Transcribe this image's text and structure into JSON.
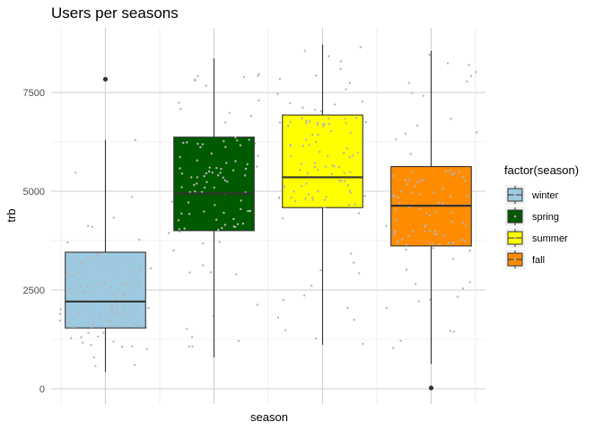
{
  "chart_data": {
    "type": "box",
    "title": "Users per seasons",
    "xlabel": "season",
    "ylabel": "trb",
    "ylim": [
      0,
      8700
    ],
    "y_ticks": [
      0,
      2500,
      5000,
      7500
    ],
    "y_tick_labels": [
      "0",
      "2500",
      "5000",
      "7500"
    ],
    "x_tick_labels": [],
    "grid": true,
    "legend": {
      "title": "factor(season)",
      "position": "right",
      "entries": [
        "winter",
        "spring",
        "summer",
        "fall"
      ]
    },
    "series": [
      {
        "name": "winter",
        "color": "#9ecae1",
        "min": 431,
        "q1": 1540,
        "median": 2209,
        "q3": 3456,
        "max": 6300,
        "outliers": [
          7836
        ]
      },
      {
        "name": "spring",
        "color": "#005a00",
        "min": 795,
        "q1": 4003,
        "median": 4942,
        "q3": 6370,
        "max": 8362,
        "outliers": []
      },
      {
        "name": "summer",
        "color": "#ffff00",
        "min": 1115,
        "q1": 4586,
        "median": 5354,
        "q3": 6930,
        "max": 8714,
        "outliers": []
      },
      {
        "name": "fall",
        "color": "#ff8c00",
        "min": 627,
        "q1": 3616,
        "median": 4634,
        "q3": 5624,
        "max": 8555,
        "outliers": [
          22
        ]
      }
    ],
    "jitter_color": "#b5b5b5",
    "jitter_note": "individual observations jittered over each box"
  }
}
